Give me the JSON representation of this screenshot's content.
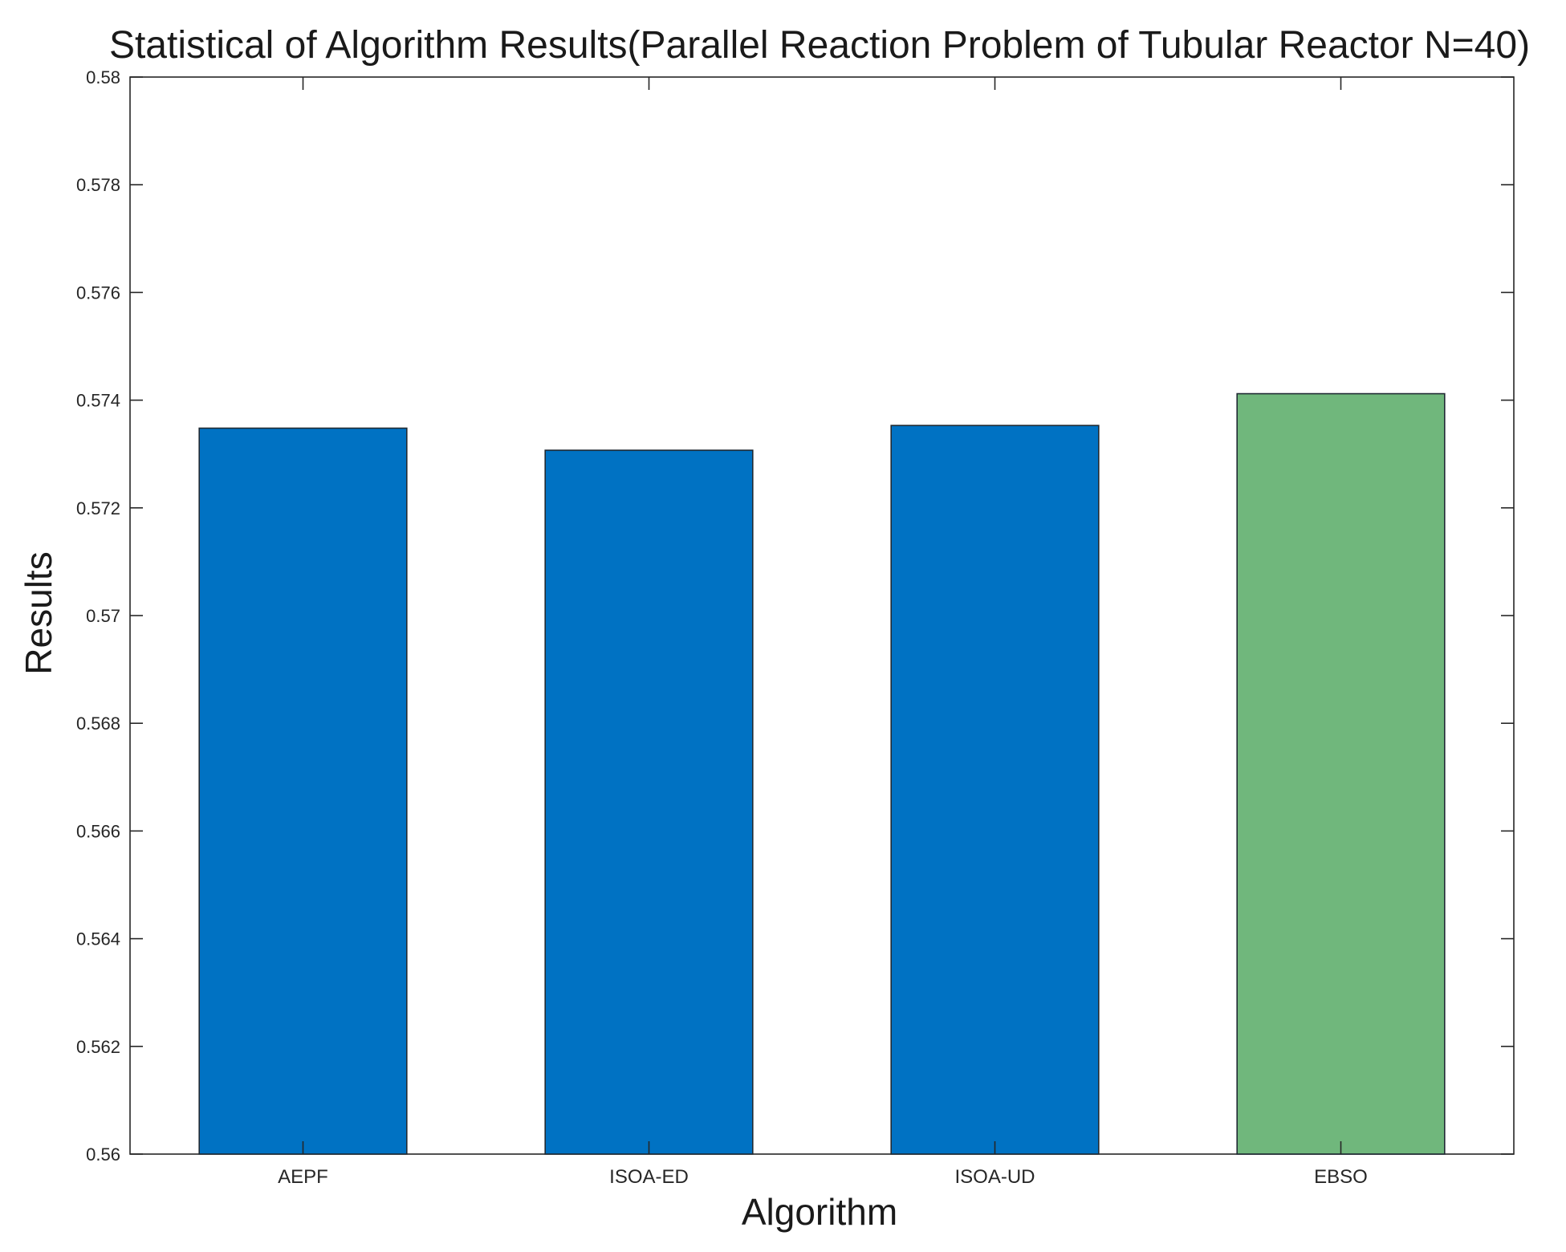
{
  "chart_data": {
    "type": "bar",
    "title": "Statistical of Algorithm Results(Parallel Reaction Problem of Tubular Reactor N=40)",
    "xlabel": "Algorithm",
    "ylabel": "Results",
    "categories": [
      "AEPF",
      "ISOA-ED",
      "ISOA-UD",
      "EBSO"
    ],
    "values": [
      0.57348,
      0.57307,
      0.57353,
      0.57412
    ],
    "bar_colors": [
      "#0072C3",
      "#0072C3",
      "#0072C3",
      "#70B77C"
    ],
    "ylim": [
      0.56,
      0.58
    ],
    "yticks": [
      0.56,
      0.562,
      0.564,
      0.566,
      0.568,
      0.57,
      0.572,
      0.574,
      0.576,
      0.578,
      0.58
    ],
    "ytick_labels": [
      "0.56",
      "0.562",
      "0.564",
      "0.566",
      "0.568",
      "0.57",
      "0.572",
      "0.574",
      "0.576",
      "0.578",
      "0.58"
    ],
    "grid": false,
    "legend": "none"
  }
}
